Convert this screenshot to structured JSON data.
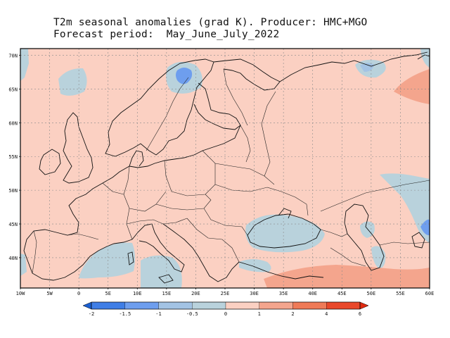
{
  "header": {
    "title_line1": "T2m seasonal anomalies (grad K). Producer: HMC+MGO",
    "title_line2": "Forecast period:  May_June_July_2022"
  },
  "map": {
    "lon_range": [
      -10,
      60
    ],
    "lat_range": [
      35.5,
      71
    ],
    "lat_ticks": [
      "70N",
      "65N",
      "60N",
      "55N",
      "50N",
      "45N",
      "40N"
    ],
    "lon_ticks": [
      "10W",
      "5W",
      "0",
      "5E",
      "10E",
      "15E",
      "20E",
      "25E",
      "30E",
      "35E",
      "40E",
      "45E",
      "50E",
      "55E",
      "60E"
    ],
    "grid": true,
    "background_color": "#fbd0c2"
  },
  "colorbar": {
    "labels": [
      "-2",
      "-1.5",
      "-1",
      "-0.5",
      "0",
      "1",
      "2",
      "4",
      "6"
    ],
    "colors": [
      "#1b5fd0",
      "#3f7ee6",
      "#6e9eee",
      "#a3c3e4",
      "#b9d2dc",
      "#fbd0c2",
      "#f4a58d",
      "#ef7a57",
      "#e9482a",
      "#e02a10"
    ]
  }
}
